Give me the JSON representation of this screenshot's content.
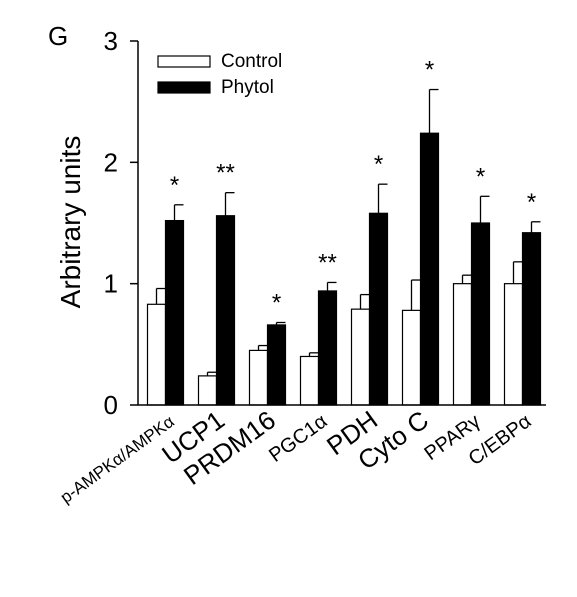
{
  "panel_label": "G",
  "chart_data": {
    "type": "bar",
    "title": "",
    "xlabel": "",
    "ylabel": "Arbitrary units",
    "ylim": [
      0,
      3
    ],
    "yticks": [
      "0",
      "1",
      "2",
      "3"
    ],
    "categories": [
      "p-AMPKα/AMPKα",
      "UCP1",
      "PRDM16",
      "PGC1α",
      "PDH",
      "Cyto C",
      "PPARγ",
      "C/EBPα"
    ],
    "series": [
      {
        "name": "Control",
        "color": "#ffffff",
        "values": [
          0.83,
          0.24,
          0.45,
          0.4,
          0.79,
          0.78,
          1.0,
          1.0
        ],
        "errors": [
          0.13,
          0.03,
          0.04,
          0.03,
          0.12,
          0.25,
          0.07,
          0.18
        ]
      },
      {
        "name": "Phytol",
        "color": "#000000",
        "values": [
          1.52,
          1.56,
          0.66,
          0.94,
          1.58,
          2.24,
          1.5,
          1.42
        ],
        "errors": [
          0.13,
          0.19,
          0.02,
          0.07,
          0.24,
          0.36,
          0.22,
          0.09
        ]
      }
    ],
    "significance": [
      "*",
      "**",
      "*",
      "**",
      "*",
      "*",
      "*",
      "*"
    ],
    "legend_position": "top-left",
    "grid": false
  }
}
